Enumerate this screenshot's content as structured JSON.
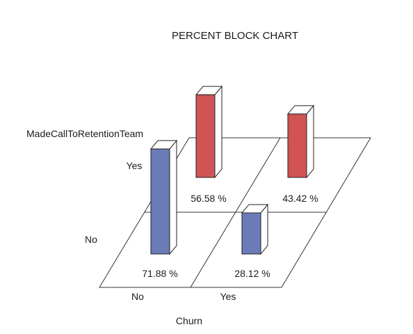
{
  "chart_data": {
    "type": "bar",
    "subtype": "3d-percent-block",
    "title": "PERCENT BLOCK CHART",
    "xlabel": "Churn",
    "ylabel": "MadeCallToRetentionTeam",
    "x_categories": [
      "No",
      "Yes"
    ],
    "y_categories": [
      "No",
      "Yes"
    ],
    "cells": [
      {
        "x": "No",
        "y": "No",
        "value": 71.88,
        "label": "71.88 %",
        "color": "#6a7cb7"
      },
      {
        "x": "Yes",
        "y": "No",
        "value": 28.12,
        "label": "28.12 %",
        "color": "#6a7cb7"
      },
      {
        "x": "No",
        "y": "Yes",
        "value": 56.58,
        "label": "56.58 %",
        "color": "#d05454"
      },
      {
        "x": "Yes",
        "y": "Yes",
        "value": 43.42,
        "label": "43.42 %",
        "color": "#d05454"
      }
    ],
    "grid": true,
    "legend": "none"
  }
}
